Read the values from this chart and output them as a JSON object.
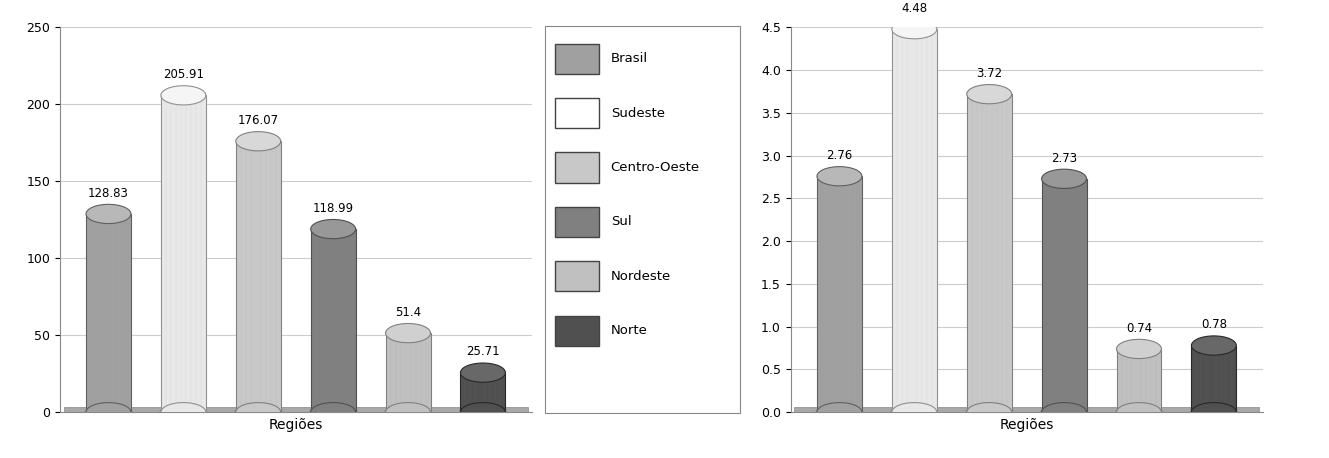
{
  "chart1": {
    "values": [
      128.83,
      205.91,
      176.07,
      118.99,
      51.4,
      25.71
    ],
    "labels": [
      "128.83",
      "205.91",
      "176.07",
      "118.99",
      "51.4",
      "25.71"
    ],
    "ylim": [
      0,
      250
    ],
    "yticks": [
      0,
      50,
      100,
      150,
      200,
      250
    ],
    "xlabel": "Regiões"
  },
  "chart2": {
    "values": [
      2.76,
      4.48,
      3.72,
      2.73,
      0.74,
      0.78
    ],
    "labels": [
      "2.76",
      "4.48",
      "3.72",
      "2.73",
      "0.74",
      "0.78"
    ],
    "ylim": [
      0,
      4.5
    ],
    "yticks": [
      0,
      0.5,
      1.0,
      1.5,
      2.0,
      2.5,
      3.0,
      3.5,
      4.0,
      4.5
    ],
    "xlabel": "Regiões"
  },
  "bar_colors": [
    "#a0a0a0",
    "#e8e8e8",
    "#c8c8c8",
    "#808080",
    "#c0c0c0",
    "#505050"
  ],
  "bar_edge_colors": [
    "#606060",
    "#909090",
    "#808080",
    "#505050",
    "#808080",
    "#282828"
  ],
  "top_colors": [
    "#b8b8b8",
    "#f5f5f5",
    "#d8d8d8",
    "#989898",
    "#d0d0d0",
    "#686868"
  ],
  "legend_labels": [
    "Brasil",
    "Sudeste",
    "Centro-Oeste",
    "Sul",
    "Nordeste",
    "Norte"
  ],
  "legend_face_colors": [
    "#a0a0a0",
    "#ffffff",
    "#c8c8c8",
    "#808080",
    "#c0c0c0",
    "#505050"
  ],
  "legend_edge_colors": [
    "#606060",
    "#606060",
    "#606060",
    "#606060",
    "#606060",
    "#606060"
  ],
  "background_color": "#ffffff",
  "plot_bg_color": "#ffffff",
  "floor_color": "#a8a8a8",
  "grid_color": "#cccccc",
  "wall_color": "#f0f0f0"
}
